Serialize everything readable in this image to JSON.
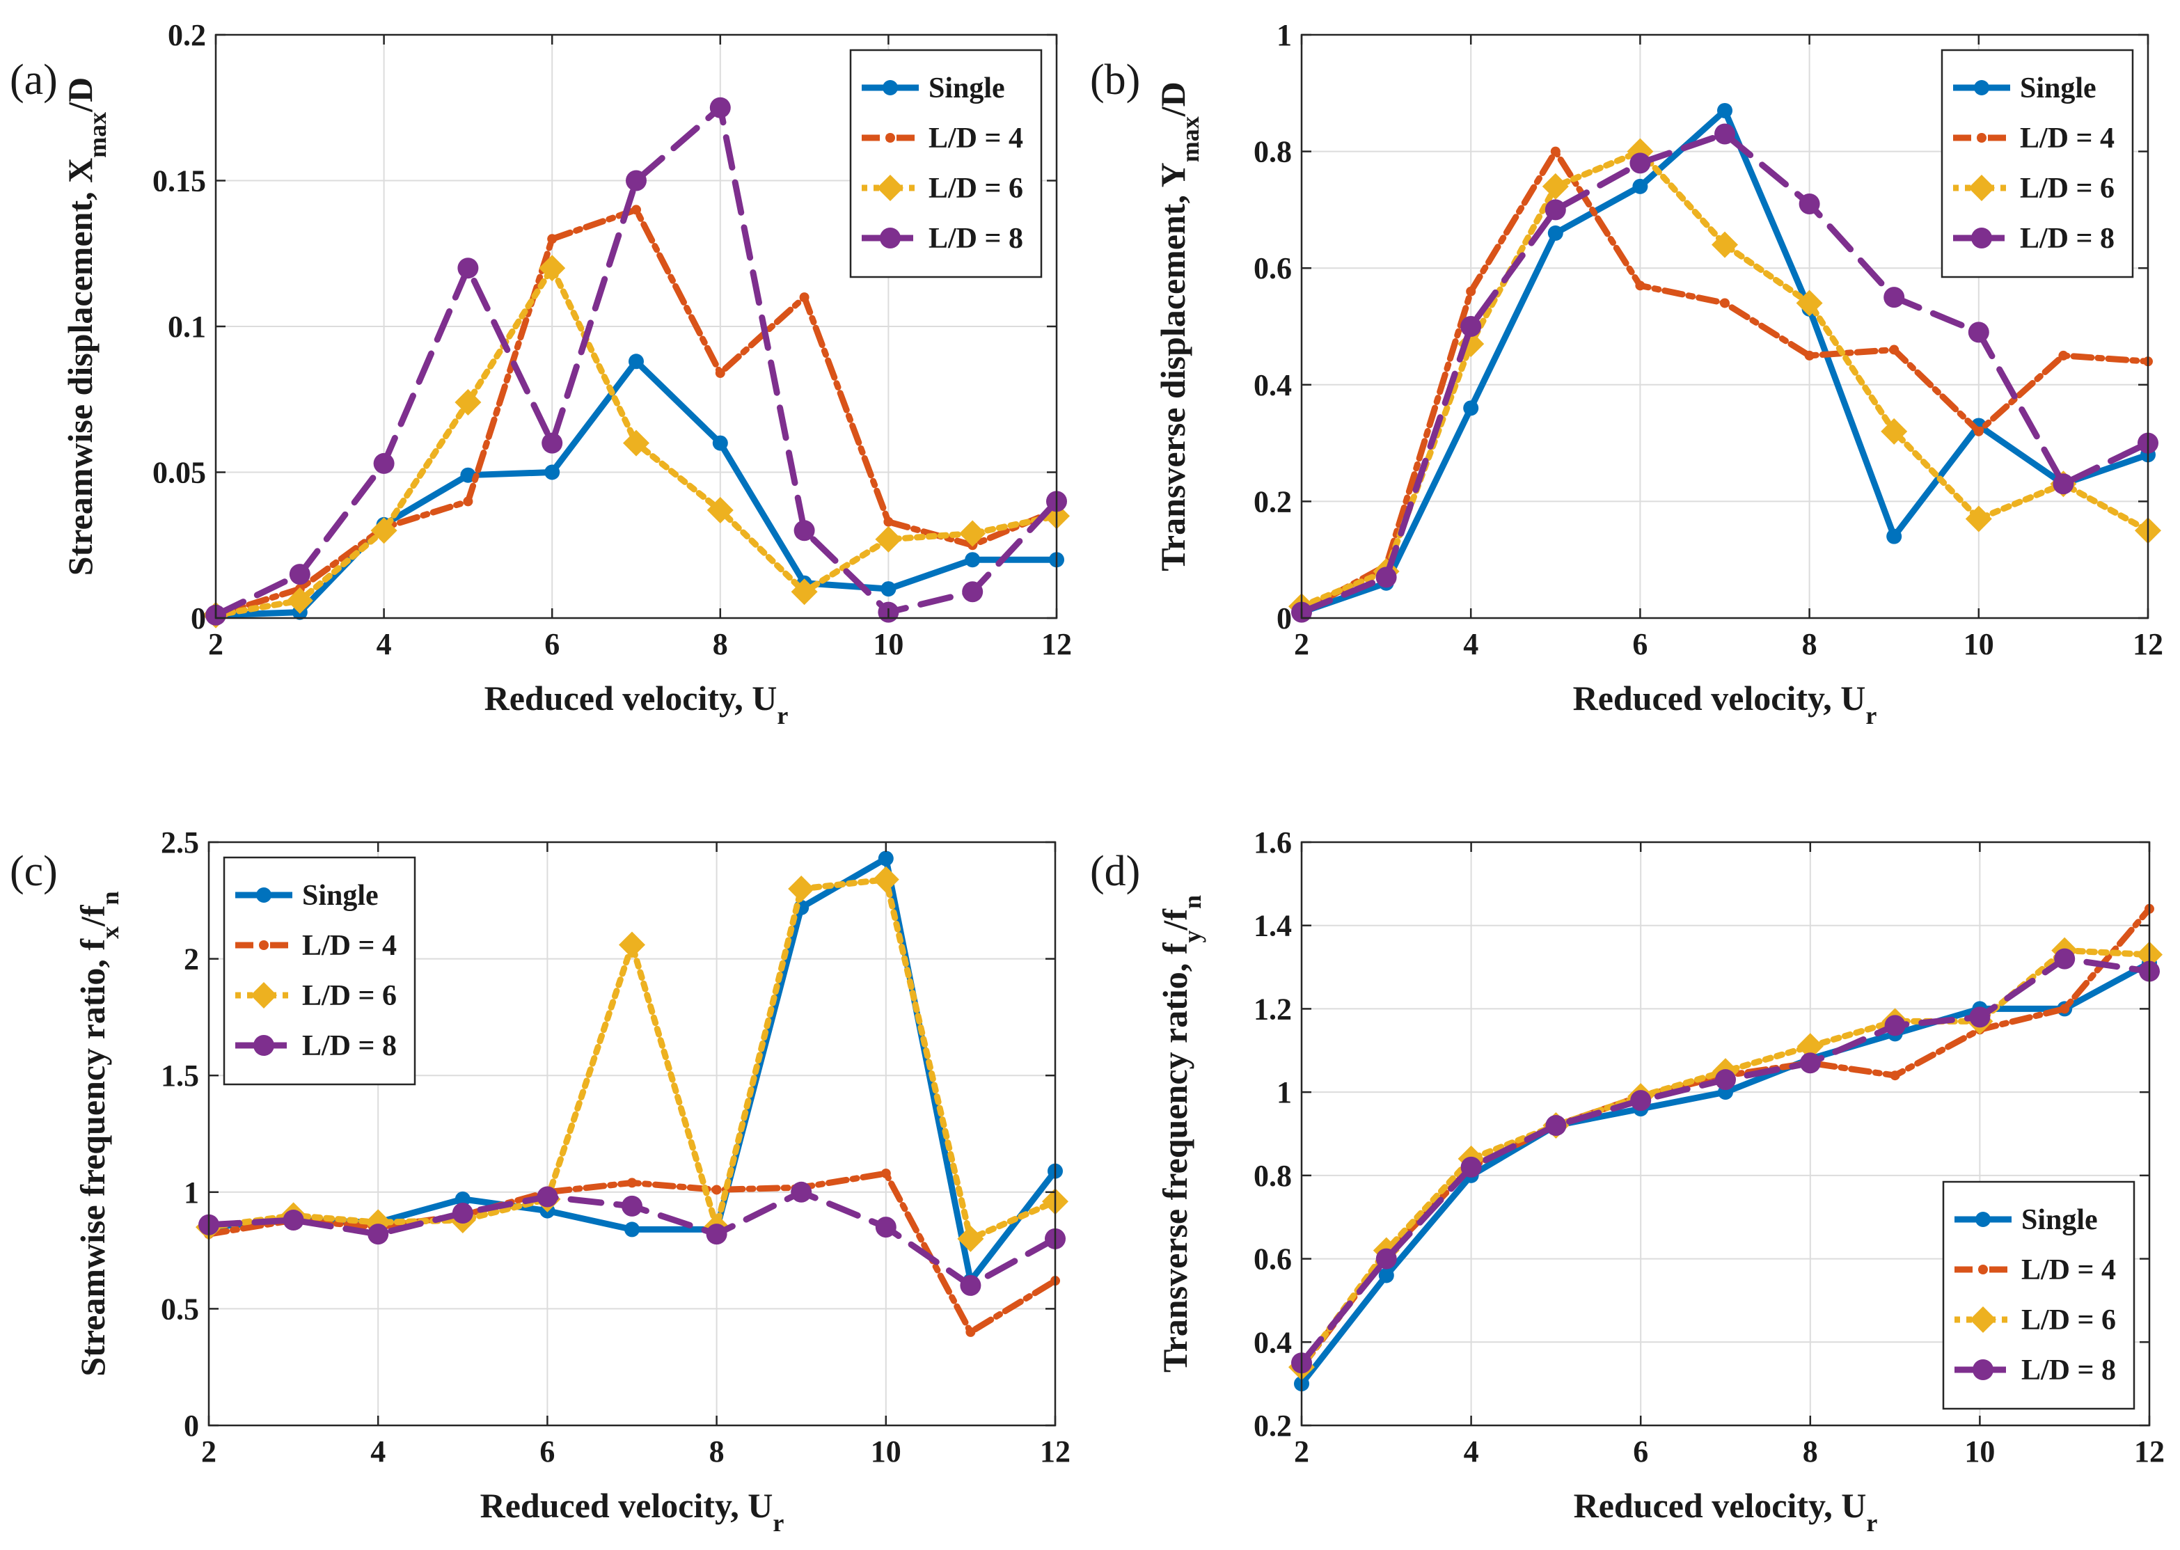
{
  "colors": {
    "single": "#0072BD",
    "ld4": "#D95319",
    "ld6": "#EDB120",
    "ld8": "#7E2F8E"
  },
  "chart_data": [
    {
      "panel": "(a)",
      "type": "line",
      "x": [
        2,
        3,
        4,
        5,
        6,
        7,
        8,
        9,
        10,
        11,
        12
      ],
      "xlim": [
        2,
        12
      ],
      "ylim": [
        0,
        0.2
      ],
      "xticks": [
        "2",
        "4",
        "6",
        "8",
        "10",
        "12"
      ],
      "xtick_values": [
        2,
        4,
        6,
        8,
        10,
        12
      ],
      "yticks": [
        "0",
        "0.05",
        "0.1",
        "0.15",
        "0.2"
      ],
      "ytick_values": [
        0,
        0.05,
        0.1,
        0.15,
        0.2
      ],
      "xlabel_main": "Reduced velocity, U",
      "xlabel_sub": "r",
      "ylabel_main": "Streamwise displacement, X",
      "ylabel_sub": "max",
      "ylabel_tail": "/D",
      "legend_position": "top-right",
      "series": [
        {
          "name": "Single",
          "style": "single",
          "values": [
            0.001,
            0.002,
            0.032,
            0.049,
            0.05,
            0.088,
            0.06,
            0.012,
            0.01,
            0.02,
            0.02
          ]
        },
        {
          "name": "L/D = 4",
          "style": "ld4",
          "values": [
            0.001,
            0.01,
            0.031,
            0.04,
            0.13,
            0.14,
            0.084,
            0.11,
            0.033,
            0.025,
            0.037
          ]
        },
        {
          "name": "L/D = 6",
          "style": "ld6",
          "values": [
            0.001,
            0.006,
            0.03,
            0.074,
            0.12,
            0.06,
            0.037,
            0.009,
            0.027,
            0.029,
            0.035
          ]
        },
        {
          "name": "L/D = 8",
          "style": "ld8",
          "values": [
            0.001,
            0.015,
            0.053,
            0.12,
            0.06,
            0.15,
            0.175,
            0.03,
            0.002,
            0.009,
            0.04
          ]
        }
      ]
    },
    {
      "panel": "(b)",
      "type": "line",
      "x": [
        2,
        3,
        4,
        5,
        6,
        7,
        8,
        9,
        10,
        11,
        12
      ],
      "xlim": [
        2,
        12
      ],
      "ylim": [
        0,
        1
      ],
      "xticks": [
        "2",
        "4",
        "6",
        "8",
        "10",
        "12"
      ],
      "xtick_values": [
        2,
        4,
        6,
        8,
        10,
        12
      ],
      "yticks": [
        "0",
        "0.2",
        "0.4",
        "0.6",
        "0.8",
        "1"
      ],
      "ytick_values": [
        0,
        0.2,
        0.4,
        0.6,
        0.8,
        1
      ],
      "xlabel_main": "Reduced velocity, U",
      "xlabel_sub": "r",
      "ylabel_main": "Transverse displacement, Y",
      "ylabel_sub": "max",
      "ylabel_tail": "/D",
      "legend_position": "top-right",
      "series": [
        {
          "name": "Single",
          "style": "single",
          "values": [
            0.01,
            0.06,
            0.36,
            0.66,
            0.74,
            0.87,
            0.53,
            0.14,
            0.33,
            0.23,
            0.28
          ]
        },
        {
          "name": "L/D = 4",
          "style": "ld4",
          "values": [
            0.01,
            0.09,
            0.56,
            0.8,
            0.57,
            0.54,
            0.45,
            0.46,
            0.32,
            0.45,
            0.44
          ]
        },
        {
          "name": "L/D = 6",
          "style": "ld6",
          "values": [
            0.02,
            0.08,
            0.47,
            0.74,
            0.8,
            0.64,
            0.54,
            0.32,
            0.17,
            0.23,
            0.15
          ]
        },
        {
          "name": "L/D = 8",
          "style": "ld8",
          "values": [
            0.01,
            0.07,
            0.5,
            0.7,
            0.78,
            0.83,
            0.71,
            0.55,
            0.49,
            0.23,
            0.3
          ]
        }
      ]
    },
    {
      "panel": "(c)",
      "type": "line",
      "x": [
        2,
        3,
        4,
        5,
        6,
        7,
        8,
        9,
        10,
        11,
        12
      ],
      "xlim": [
        2,
        12
      ],
      "ylim": [
        0,
        2.5
      ],
      "xticks": [
        "2",
        "4",
        "6",
        "8",
        "10",
        "12"
      ],
      "xtick_values": [
        2,
        4,
        6,
        8,
        10,
        12
      ],
      "yticks": [
        "0",
        "0.5",
        "1",
        "1.5",
        "2",
        "2.5"
      ],
      "ytick_values": [
        0,
        0.5,
        1,
        1.5,
        2,
        2.5
      ],
      "xlabel_main": "Reduced velocity, U",
      "xlabel_sub": "r",
      "ylabel_main": "Streamwise frequency ratio, f",
      "ylabel_sub": "x",
      "ylabel_tail": "/f",
      "ylabel_sub2": "n",
      "legend_position": "top-left",
      "series": [
        {
          "name": "Single",
          "style": "single",
          "values": [
            0.85,
            0.88,
            0.87,
            0.97,
            0.92,
            0.84,
            0.84,
            2.22,
            2.43,
            0.62,
            1.09
          ]
        },
        {
          "name": "L/D = 4",
          "style": "ld4",
          "values": [
            0.82,
            0.88,
            0.85,
            0.9,
            1.0,
            1.04,
            1.01,
            1.02,
            1.08,
            0.4,
            0.62
          ]
        },
        {
          "name": "L/D = 6",
          "style": "ld6",
          "values": [
            0.85,
            0.9,
            0.87,
            0.88,
            0.97,
            2.06,
            0.85,
            2.3,
            2.34,
            0.8,
            0.96
          ]
        },
        {
          "name": "L/D = 8",
          "style": "ld8",
          "values": [
            0.86,
            0.88,
            0.82,
            0.91,
            0.98,
            0.94,
            0.82,
            1.0,
            0.85,
            0.6,
            0.8
          ]
        }
      ]
    },
    {
      "panel": "(d)",
      "type": "line",
      "x": [
        2,
        3,
        4,
        5,
        6,
        7,
        8,
        9,
        10,
        11,
        12
      ],
      "xlim": [
        2,
        12
      ],
      "ylim": [
        0.2,
        1.6
      ],
      "xticks": [
        "2",
        "4",
        "6",
        "8",
        "10",
        "12"
      ],
      "xtick_values": [
        2,
        4,
        6,
        8,
        10,
        12
      ],
      "yticks": [
        "0.2",
        "0.4",
        "0.6",
        "0.8",
        "1",
        "1.2",
        "1.4",
        "1.6"
      ],
      "ytick_values": [
        0.2,
        0.4,
        0.6,
        0.8,
        1,
        1.2,
        1.4,
        1.6
      ],
      "xlabel_main": "Reduced velocity, U",
      "xlabel_sub": "r",
      "ylabel_main": "Transverse frequency ratio, f",
      "ylabel_sub": "y",
      "ylabel_tail": "/f",
      "ylabel_sub2": "n",
      "legend_position": "bottom-right",
      "series": [
        {
          "name": "Single",
          "style": "single",
          "values": [
            0.3,
            0.56,
            0.8,
            0.92,
            0.96,
            1.0,
            1.08,
            1.14,
            1.2,
            1.2,
            1.31
          ]
        },
        {
          "name": "L/D = 4",
          "style": "ld4",
          "values": [
            0.34,
            0.61,
            0.82,
            0.92,
            0.99,
            1.04,
            1.07,
            1.04,
            1.15,
            1.2,
            1.44
          ]
        },
        {
          "name": "L/D = 6",
          "style": "ld6",
          "values": [
            0.34,
            0.62,
            0.84,
            0.92,
            0.99,
            1.05,
            1.11,
            1.17,
            1.17,
            1.34,
            1.33
          ]
        },
        {
          "name": "L/D = 8",
          "style": "ld8",
          "values": [
            0.35,
            0.6,
            0.82,
            0.92,
            0.98,
            1.03,
            1.07,
            1.16,
            1.18,
            1.32,
            1.29
          ]
        }
      ]
    }
  ]
}
